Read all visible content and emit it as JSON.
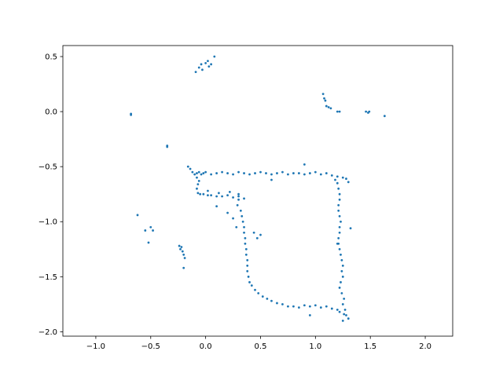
{
  "chart_data": {
    "type": "scatter",
    "title": "",
    "xlabel": "",
    "ylabel": "",
    "xlim": [
      -1.3,
      2.25
    ],
    "ylim": [
      -2.04,
      0.6
    ],
    "grid": false,
    "x_ticks": [
      -1.0,
      -0.5,
      0.0,
      0.5,
      1.0,
      1.5,
      2.0
    ],
    "x_tick_labels": [
      "−1.0",
      "−0.5",
      "0.0",
      "0.5",
      "1.0",
      "1.5",
      "2.0"
    ],
    "y_ticks": [
      0.5,
      0.0,
      -0.5,
      -1.0,
      -1.5,
      -2.0
    ],
    "y_tick_labels": [
      "0.5",
      "0.0",
      "−0.5",
      "−1.0",
      "−1.5",
      "−2.0"
    ],
    "marker_color": "#1f77b4",
    "series": [
      {
        "name": "",
        "x": [
          -0.09,
          -0.06,
          -0.04,
          -0.03,
          0.0,
          0.02,
          0.03,
          0.05,
          0.08,
          1.07,
          1.08,
          1.09,
          1.1,
          1.12,
          1.14,
          1.2,
          1.22,
          1.46,
          1.48,
          1.49,
          1.63,
          -0.68,
          -0.68,
          -0.35,
          -0.35,
          -0.62,
          -0.55,
          -0.52,
          -0.5,
          -0.48,
          -0.24,
          -0.23,
          -0.22,
          -0.21,
          -0.2,
          -0.19,
          -0.2,
          -0.16,
          -0.14,
          -0.12,
          -0.1,
          -0.08,
          -0.06,
          -0.04,
          -0.02,
          0.0,
          0.05,
          0.1,
          0.15,
          0.2,
          0.25,
          0.3,
          0.35,
          0.4,
          0.45,
          0.5,
          0.55,
          0.6,
          0.65,
          0.7,
          0.75,
          0.8,
          0.85,
          0.9,
          0.95,
          1.0,
          1.05,
          1.1,
          1.15,
          1.2,
          1.25,
          1.28,
          1.3,
          -0.08,
          -0.06,
          -0.07,
          -0.08,
          -0.07,
          -0.05,
          -0.02,
          0.02,
          0.05,
          0.1,
          0.15,
          0.2,
          0.25,
          0.3,
          0.35,
          0.02,
          0.12,
          0.22,
          0.3,
          0.29,
          0.32,
          0.33,
          0.34,
          0.35,
          0.35,
          0.36,
          0.36,
          0.37,
          0.37,
          0.38,
          0.38,
          0.38,
          0.39,
          0.4,
          0.42,
          0.45,
          0.48,
          0.52,
          0.56,
          0.6,
          0.65,
          0.7,
          0.75,
          0.8,
          0.85,
          0.9,
          0.95,
          1.0,
          1.05,
          1.1,
          1.15,
          1.2,
          1.2,
          1.21,
          1.22,
          1.22,
          1.21,
          1.21,
          1.22,
          1.23,
          1.22,
          1.22,
          1.21,
          1.21,
          1.22,
          1.23,
          1.24,
          1.25,
          1.24,
          1.25,
          1.23,
          1.22,
          1.24,
          1.26,
          1.25,
          1.27,
          1.26,
          1.3,
          1.28,
          1.25,
          1.22,
          0.2,
          0.25,
          0.28,
          0.44,
          0.47,
          0.5,
          0.3,
          0.1,
          0.9,
          0.6,
          0.95,
          1.32,
          1.2,
          1.18
        ],
        "y": [
          0.36,
          0.4,
          0.43,
          0.38,
          0.44,
          0.46,
          0.41,
          0.43,
          0.5,
          0.16,
          0.12,
          0.1,
          0.05,
          0.04,
          0.03,
          0.0,
          0.0,
          0.0,
          -0.01,
          0.0,
          -0.04,
          -0.02,
          -0.03,
          -0.31,
          -0.32,
          -0.94,
          -1.08,
          -1.19,
          -1.05,
          -1.08,
          -1.22,
          -1.25,
          -1.23,
          -1.27,
          -1.3,
          -1.33,
          -1.42,
          -0.5,
          -0.52,
          -0.55,
          -0.57,
          -0.56,
          -0.55,
          -0.57,
          -0.56,
          -0.55,
          -0.57,
          -0.56,
          -0.55,
          -0.56,
          -0.57,
          -0.55,
          -0.56,
          -0.57,
          -0.56,
          -0.55,
          -0.56,
          -0.57,
          -0.56,
          -0.55,
          -0.57,
          -0.56,
          -0.56,
          -0.57,
          -0.56,
          -0.55,
          -0.57,
          -0.56,
          -0.58,
          -0.59,
          -0.6,
          -0.61,
          -0.64,
          -0.6,
          -0.63,
          -0.66,
          -0.7,
          -0.74,
          -0.75,
          -0.75,
          -0.76,
          -0.76,
          -0.77,
          -0.77,
          -0.76,
          -0.78,
          -0.77,
          -0.79,
          -0.72,
          -0.74,
          -0.73,
          -0.75,
          -0.85,
          -0.9,
          -0.95,
          -1.0,
          -1.05,
          -1.1,
          -1.15,
          -1.2,
          -1.25,
          -1.3,
          -1.35,
          -1.4,
          -1.45,
          -1.5,
          -1.55,
          -1.58,
          -1.62,
          -1.65,
          -1.68,
          -1.7,
          -1.72,
          -1.74,
          -1.75,
          -1.77,
          -1.77,
          -1.78,
          -1.76,
          -1.77,
          -1.76,
          -1.78,
          -1.77,
          -1.79,
          -1.8,
          -0.65,
          -0.7,
          -0.75,
          -0.8,
          -0.85,
          -0.9,
          -0.95,
          -1.0,
          -1.05,
          -1.1,
          -1.15,
          -1.2,
          -1.25,
          -1.3,
          -1.35,
          -1.4,
          -1.45,
          -1.5,
          -1.55,
          -1.6,
          -1.65,
          -1.7,
          -1.75,
          -1.8,
          -1.84,
          -1.88,
          -1.85,
          -1.9,
          -1.82,
          -0.92,
          -0.97,
          -1.05,
          -1.1,
          -1.15,
          -1.12,
          -0.8,
          -0.86,
          -0.48,
          -0.62,
          -1.85,
          -1.06,
          -1.2,
          -0.62
        ]
      }
    ]
  }
}
